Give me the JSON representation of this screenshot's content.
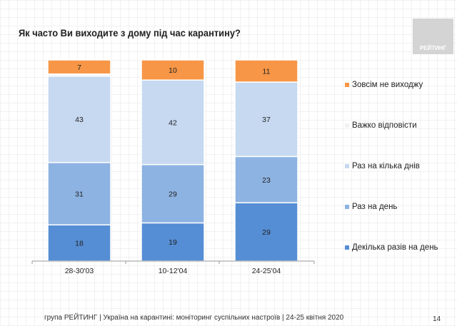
{
  "title": "Як часто Ви виходите з дому під час карантину?",
  "logo_text": "РЕЙТИНГ",
  "footer": "група РЕЙТИНГ | Україна на карантині: моніторинг суспільних настроїв  | 24-25 квітня  2020",
  "page_number": "14",
  "chart_data": {
    "type": "bar",
    "stacked": true,
    "categories": [
      "28-30'03",
      "10-12'04",
      "24-25'04"
    ],
    "series": [
      {
        "name": "Декілька разів на день",
        "values": [
          18,
          19,
          29
        ],
        "color": "#558ED5"
      },
      {
        "name": "Раз на день",
        "values": [
          31,
          29,
          23
        ],
        "color": "#8DB3E2"
      },
      {
        "name": "Раз на кілька днів",
        "values": [
          43,
          42,
          37
        ],
        "color": "#C6D9F1"
      },
      {
        "name": "Важко відповісти",
        "values": [
          1,
          0,
          0
        ],
        "color": "#F2F2F2"
      },
      {
        "name": "Зовсім не виходжу",
        "values": [
          7,
          10,
          11
        ],
        "color": "#F79646"
      }
    ],
    "ylim": [
      0,
      100
    ],
    "legend_position": "right",
    "legend_order": [
      "Зовсім не виходжу",
      "Важко відповісти",
      "Раз на кілька днів",
      "Раз на день",
      "Декілька разів на день"
    ]
  }
}
